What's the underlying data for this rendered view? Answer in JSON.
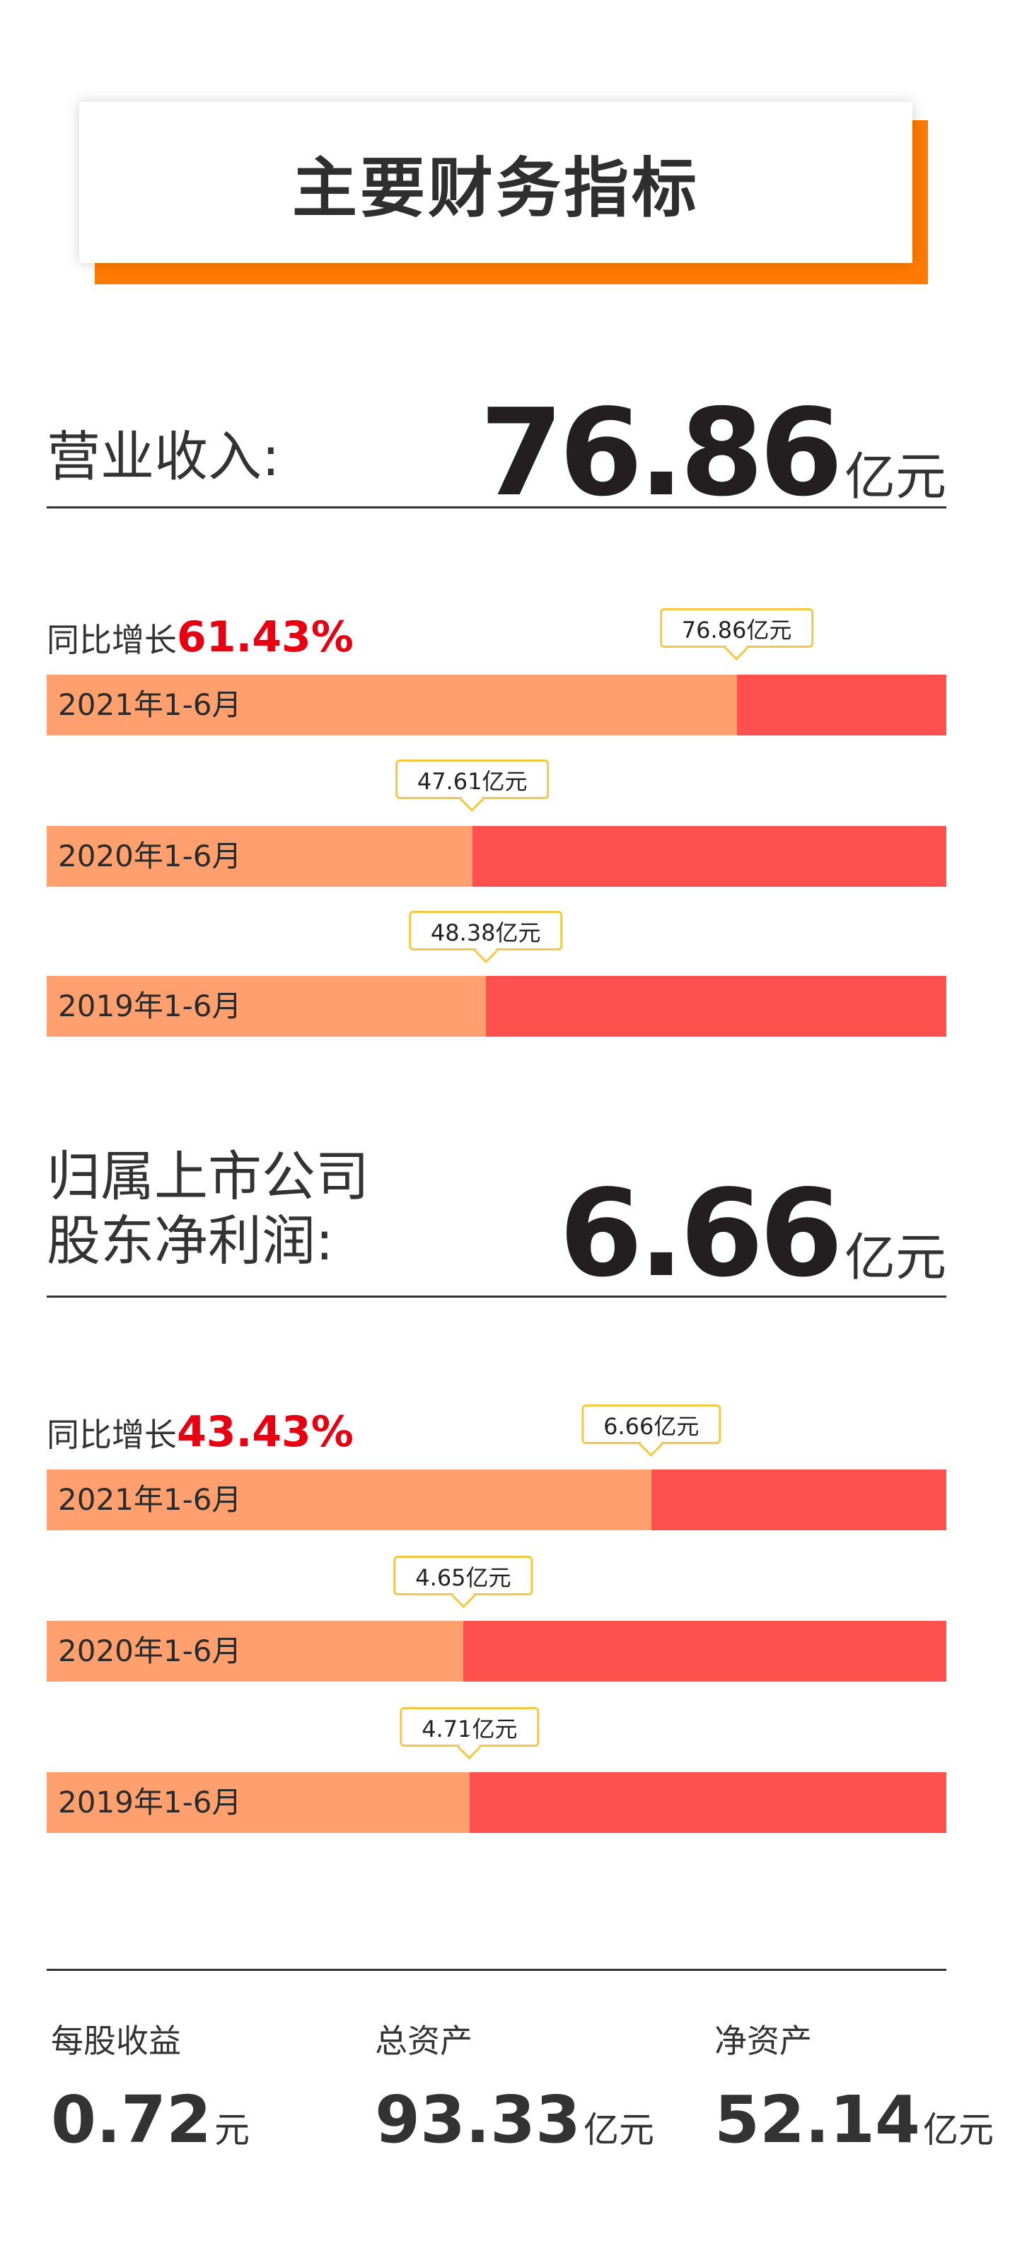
{
  "header": {
    "title": "主要财务指标"
  },
  "revenue": {
    "label": "营业收入:",
    "value": "76.86",
    "unit": "亿元",
    "growth_label": "同比增长",
    "growth_value": "61.43%"
  },
  "profit": {
    "label": "归属上市公司\n股东净利润:",
    "value": "6.66",
    "unit": "亿元",
    "growth_label": "同比增长",
    "growth_value": "43.43%"
  },
  "stats": [
    {
      "label": "每股收益",
      "value": "0.72",
      "unit": "元"
    },
    {
      "label": "总资产",
      "value": "93.33",
      "unit": "亿元"
    },
    {
      "label": "净资产",
      "value": "52.14",
      "unit": "亿元"
    }
  ],
  "chart_data": [
    {
      "type": "bar",
      "title": "营业收入",
      "categories": [
        "2021年1-6月",
        "2020年1-6月",
        "2019年1-6月"
      ],
      "values": [
        76.86,
        47.61,
        48.38
      ],
      "value_labels": [
        "76.86亿元",
        "47.61亿元",
        "48.38亿元"
      ],
      "unit": "亿元",
      "fill_fraction": [
        0.767,
        0.473,
        0.488
      ]
    },
    {
      "type": "bar",
      "title": "归属上市公司股东净利润",
      "categories": [
        "2021年1-6月",
        "2020年1-6月",
        "2019年1-6月"
      ],
      "values": [
        6.66,
        4.65,
        4.71
      ],
      "value_labels": [
        "6.66亿元",
        "4.65亿元",
        "4.71亿元"
      ],
      "unit": "亿元",
      "fill_fraction": [
        0.672,
        0.463,
        0.47
      ]
    }
  ],
  "colors": {
    "accent": "#ff7a00",
    "bar_fill": "#ffa06e",
    "bar_track": "#ff5050",
    "callout_border": "#f5c842",
    "growth": "#e60012"
  }
}
